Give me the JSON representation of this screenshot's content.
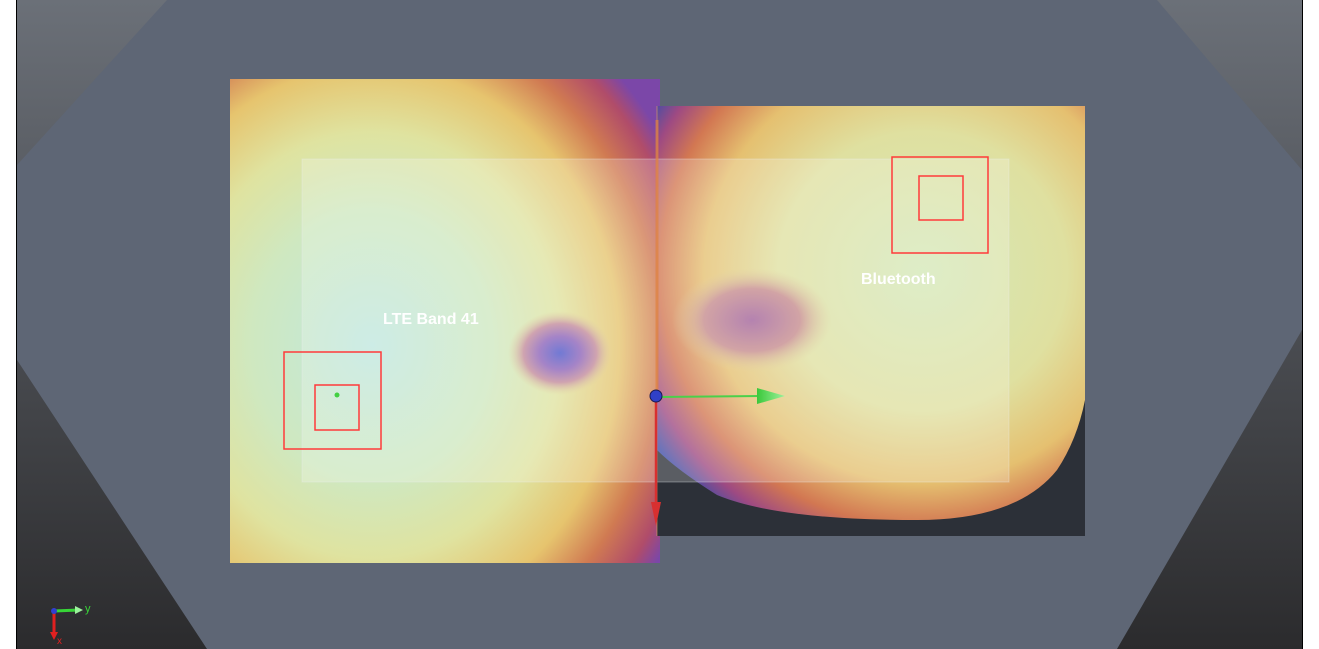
{
  "viewport": {
    "background_top": "#6b7078",
    "background_bottom": "#2b2b2d",
    "body_color": "#5e6675"
  },
  "labels": {
    "antenna_left": "LTE Band 41",
    "antenna_right": "Bluetooth"
  },
  "axis_triad": {
    "y_label": "y",
    "x_label": "x",
    "y_color": "#37d637",
    "x_color": "#e02020",
    "z_color": "#3040d0"
  },
  "field_colors": {
    "peak": "#bfe7df",
    "high": "#d8e9a8",
    "mid": "#e3c46a",
    "low": "#c95a48",
    "lowest": "#7b47a8",
    "null": "#4a55c8"
  },
  "marker_color": "#ff3a3a"
}
